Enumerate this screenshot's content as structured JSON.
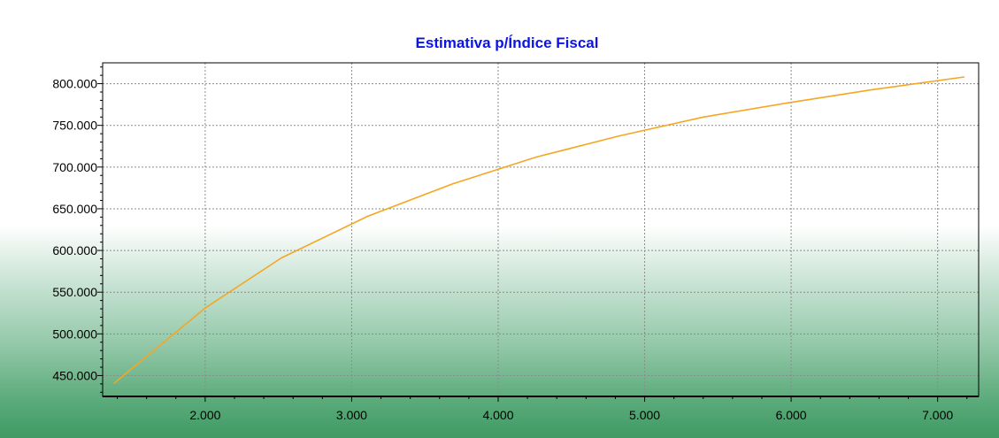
{
  "chart_data": {
    "type": "line",
    "title": "Estimativa p/Índice Fiscal",
    "xlabel": "",
    "ylabel": "",
    "xlim": [
      1300,
      7280
    ],
    "ylim": [
      425,
      825
    ],
    "grid": true,
    "x_ticks": [
      2000,
      3000,
      4000,
      5000,
      6000,
      7000
    ],
    "x_tick_labels": [
      "2.000",
      "3.000",
      "4.000",
      "5.000",
      "6.000",
      "7.000"
    ],
    "y_ticks": [
      450,
      500,
      550,
      600,
      650,
      700,
      750,
      800
    ],
    "y_tick_labels": [
      "450.000",
      "500.000",
      "550.000",
      "600.000",
      "650.000",
      "700.000",
      "750.000",
      "800.000"
    ],
    "line_color": "#f5a623",
    "series": [
      {
        "x": [
          1380,
          2000,
          2520,
          3110,
          3690,
          4260,
          4820,
          5400,
          5980,
          6560,
          7180
        ],
        "y": [
          441000,
          531000,
          591000,
          641000,
          680000,
          712000,
          737000,
          760000,
          777000,
          793000,
          808000
        ]
      }
    ]
  }
}
